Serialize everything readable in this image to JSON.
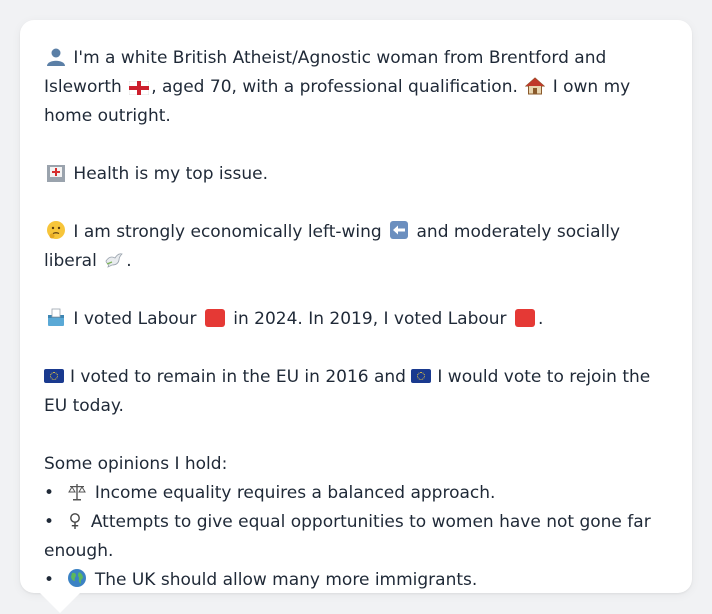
{
  "profile": {
    "line1": "I'm a white British Atheist/Agnostic woman from Brentford and Isleworth",
    "line1b": ", aged 70, with a professional qualification.",
    "line1c": "I own my home outright.",
    "health": "Health is my top issue.",
    "econ_a": "I am strongly economically left-wing",
    "econ_b": "and moderately socially liberal",
    "econ_c": ".",
    "vote_a": "I voted Labour",
    "vote_b": "in 2024. In 2019, I voted Labour",
    "vote_c": ".",
    "eu_a": "I voted to remain in the EU in 2016 and",
    "eu_b": "I would vote to rejoin the EU today.",
    "opinions_title": "Some opinions I hold:",
    "opinions": [
      {
        "icon": "scales-icon",
        "text": "Income equality requires a balanced approach."
      },
      {
        "icon": "female-sign-icon",
        "text": "Attempts to give equal opportunities to women have not gone far enough."
      },
      {
        "icon": "globe-icon",
        "text": "The UK should allow many more immigrants."
      }
    ]
  },
  "colors": {
    "card": "#ffffff",
    "background": "#f1f2f4",
    "labour_red": "#e53935",
    "eu_blue": "#1a3a8f"
  }
}
